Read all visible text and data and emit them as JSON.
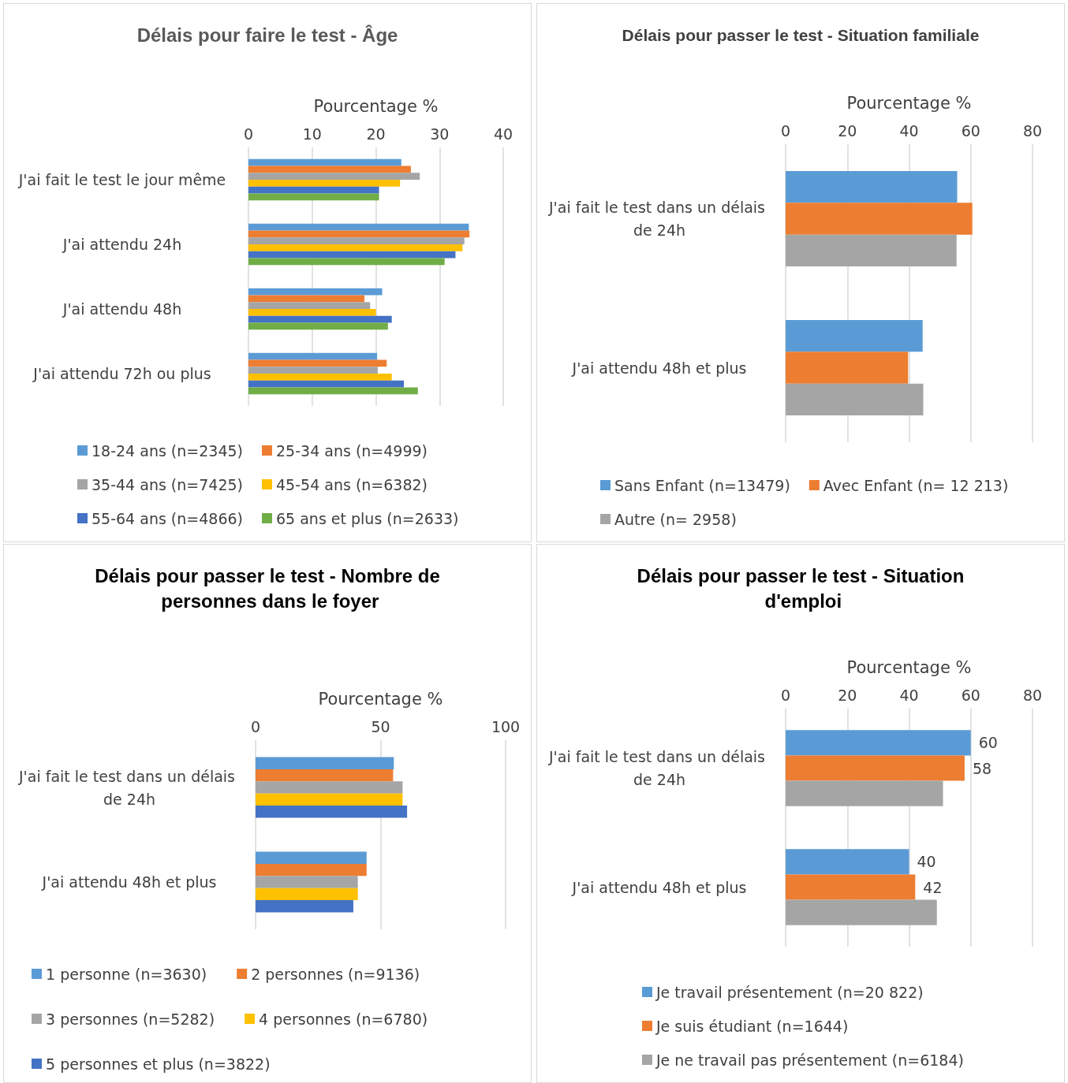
{
  "chart_data": [
    {
      "type": "bar",
      "orientation": "horizontal",
      "title": "Délais pour faire le test - Âge",
      "xlabel": "Pourcentage %",
      "categories": [
        "J'ai fait le test le jour même",
        "J'ai attendu 24h",
        "J'ai attendu 48h",
        "J'ai attendu 72h ou plus"
      ],
      "xlim": [
        0,
        40
      ],
      "xticks": [
        0,
        10,
        20,
        30,
        40
      ],
      "grid": "x",
      "legend": "bottom",
      "series": [
        {
          "name": "18-24 ans (n=2345)",
          "color": "#5b9bd5",
          "values": [
            24.0,
            34.6,
            21.0,
            20.2
          ]
        },
        {
          "name": "25-34 ans (n=4999)",
          "color": "#ed7d31",
          "values": [
            25.5,
            34.7,
            18.2,
            21.7
          ]
        },
        {
          "name": "35-44 ans (n=7425)",
          "color": "#a5a5a5",
          "values": [
            26.9,
            33.9,
            19.1,
            20.3
          ]
        },
        {
          "name": "45-54 ans (n=6382)",
          "color": "#ffc000",
          "values": [
            23.8,
            33.6,
            20.0,
            22.5
          ]
        },
        {
          "name": "55-64 ans (n=4866)",
          "color": "#4472c4",
          "values": [
            20.5,
            32.5,
            22.5,
            24.4
          ]
        },
        {
          "name": "65 ans et plus (n=2633)",
          "color": "#70ad47",
          "values": [
            20.5,
            30.8,
            21.9,
            26.6
          ]
        }
      ]
    },
    {
      "type": "bar",
      "orientation": "horizontal",
      "title": "Délais pour passer le test - Situation familiale",
      "xlabel": "Pourcentage %",
      "categories": [
        "J'ai fait le test dans un délais de 24h",
        "J'ai attendu 48h et plus"
      ],
      "xlim": [
        0,
        80
      ],
      "xticks": [
        0,
        20,
        40,
        60,
        80
      ],
      "grid": "x",
      "legend": "bottom",
      "series": [
        {
          "name": "Sans Enfant (n=13479)",
          "color": "#5b9bd5",
          "values": [
            55.6,
            44.4
          ]
        },
        {
          "name": "Avec Enfant (n= 12 213)",
          "color": "#ed7d31",
          "values": [
            60.5,
            39.7
          ]
        },
        {
          "name": "Autre (n= 2958)",
          "color": "#a5a5a5",
          "values": [
            55.4,
            44.6
          ]
        }
      ]
    },
    {
      "type": "bar",
      "orientation": "horizontal",
      "title": "Délais pour passer le test - Nombre de personnes dans le foyer",
      "xlabel": "Pourcentage %",
      "categories": [
        "J'ai fait le test dans un délais de 24h",
        "J'ai attendu 48h et plus"
      ],
      "xlim": [
        0,
        100
      ],
      "xticks": [
        0,
        50,
        100
      ],
      "grid": "x",
      "legend": "bottom",
      "series": [
        {
          "name": "1 personne (n=3630)",
          "color": "#5b9bd5",
          "values": [
            55.3,
            44.4
          ]
        },
        {
          "name": "2 personnes (n=9136)",
          "color": "#ed7d31",
          "values": [
            55.0,
            44.4
          ]
        },
        {
          "name": "3 personnes (n=5282)",
          "color": "#a5a5a5",
          "values": [
            58.8,
            40.9
          ]
        },
        {
          "name": "4 personnes (n=6780)",
          "color": "#ffc000",
          "values": [
            58.8,
            40.9
          ]
        },
        {
          "name": "5 personnes et plus (n=3822)",
          "color": "#4472c4",
          "values": [
            60.6,
            39.1
          ]
        }
      ]
    },
    {
      "type": "bar",
      "orientation": "horizontal",
      "title": "Délais pour passer le test - Situation d'emploi",
      "xlabel": "Pourcentage %",
      "categories": [
        "J'ai fait le test dans un délais de 24h",
        "J'ai attendu 48h et plus"
      ],
      "xlim": [
        0,
        80
      ],
      "xticks": [
        0,
        20,
        40,
        60,
        80
      ],
      "grid": "x",
      "legend": "bottom",
      "series": [
        {
          "name": "Je travail présentement (n=20 822)",
          "color": "#5b9bd5",
          "values": [
            60,
            40
          ],
          "value_labels": [
            "60",
            "40"
          ]
        },
        {
          "name": "Je suis étudiant (n=1644)",
          "color": "#ed7d31",
          "values": [
            58,
            42
          ],
          "value_labels": [
            "58",
            "42"
          ]
        },
        {
          "name": "Je ne travail pas présentement (n=6184)",
          "color": "#a5a5a5",
          "values": [
            51,
            49
          ]
        }
      ]
    }
  ]
}
